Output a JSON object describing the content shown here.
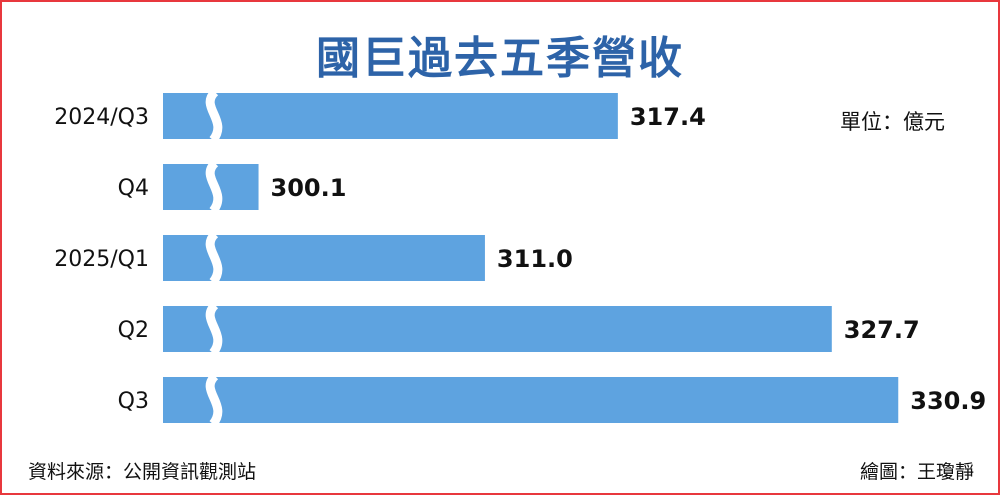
{
  "chart_data": {
    "type": "bar",
    "orientation": "horizontal",
    "title": "國巨過去五季營收",
    "unit_note": "單位：億元",
    "categories": [
      "2024/Q3",
      "Q4",
      "2025/Q1",
      "Q2",
      "Q3"
    ],
    "values": [
      317.4,
      300.1,
      311.0,
      327.7,
      330.9
    ],
    "value_labels": [
      "317.4",
      "300.1",
      "311.0",
      "327.7",
      "330.9"
    ],
    "axis_break": true,
    "xlabel": "",
    "ylabel": "",
    "grid": false,
    "legend": "none",
    "colors": {
      "bar": "#5ea3e0",
      "title": "#2d63a8",
      "border": "#e8383d",
      "break_gap": "#ffffff"
    }
  },
  "footer": {
    "source": "資料來源：公開資訊觀測站",
    "credit": "繪圖：王瓊靜"
  }
}
